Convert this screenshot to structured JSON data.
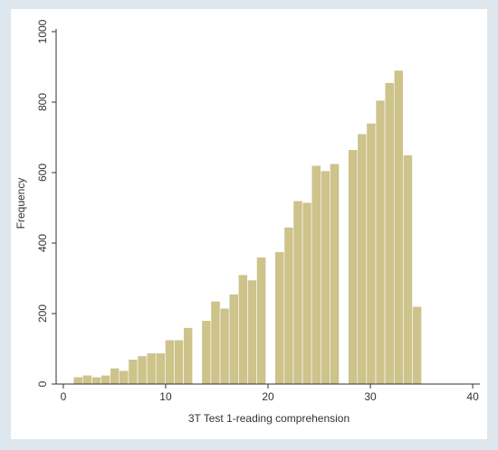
{
  "chart_data": {
    "type": "histogram",
    "xlabel": "3T Test 1-reading comprehension",
    "ylabel": "Frequency",
    "bins": [
      1,
      1.89,
      2.79,
      3.68,
      4.58,
      5.47,
      6.37,
      7.26,
      8.16,
      9.05,
      9.95,
      10.84,
      11.74,
      12.63,
      13.53,
      14.42,
      15.32,
      16.21,
      17.11,
      18.0,
      18.89,
      19.79,
      20.68,
      21.58,
      22.47,
      23.37,
      24.26,
      25.16,
      26.05,
      26.95,
      27.84,
      28.74,
      29.63,
      30.53,
      31.42,
      32.32,
      33.21,
      34.11,
      35
    ],
    "values": [
      20,
      25,
      20,
      25,
      45,
      38,
      70,
      80,
      88,
      88,
      125,
      125,
      160,
      0,
      180,
      235,
      215,
      255,
      310,
      295,
      360,
      0,
      375,
      445,
      520,
      515,
      620,
      605,
      625,
      0,
      665,
      710,
      740,
      805,
      855,
      890,
      650,
      220
    ],
    "color": "#cdc38b",
    "xlim": [
      -0.7,
      40.7
    ],
    "xticks": [
      0,
      10,
      20,
      30,
      40
    ],
    "ylim": [
      0,
      1000
    ],
    "yticks": [
      0,
      200,
      400,
      600,
      800,
      1000
    ],
    "grid": false
  }
}
